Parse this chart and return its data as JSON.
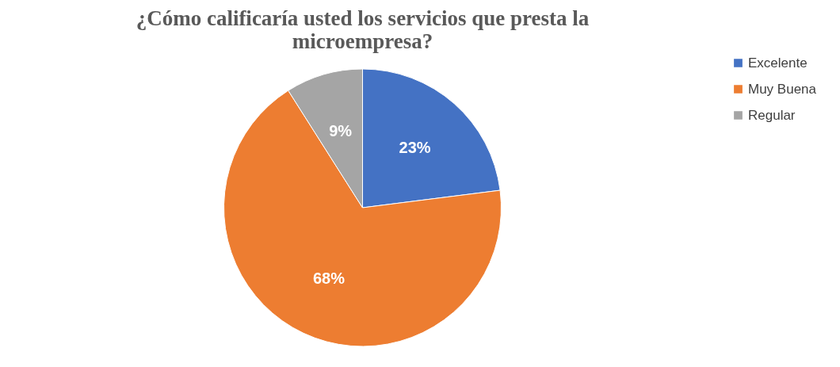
{
  "chart_data": {
    "type": "pie",
    "title": "¿Cómo calificaría usted los servicios que presta la microempresa?",
    "categories": [
      "Excelente",
      "Muy Buena",
      "Regular"
    ],
    "values": [
      23,
      68,
      9
    ],
    "colors": [
      "#4472c4",
      "#ed7d31",
      "#a5a5a5"
    ],
    "value_labels": [
      "23%",
      "68%",
      "9%"
    ],
    "legend": "right"
  }
}
